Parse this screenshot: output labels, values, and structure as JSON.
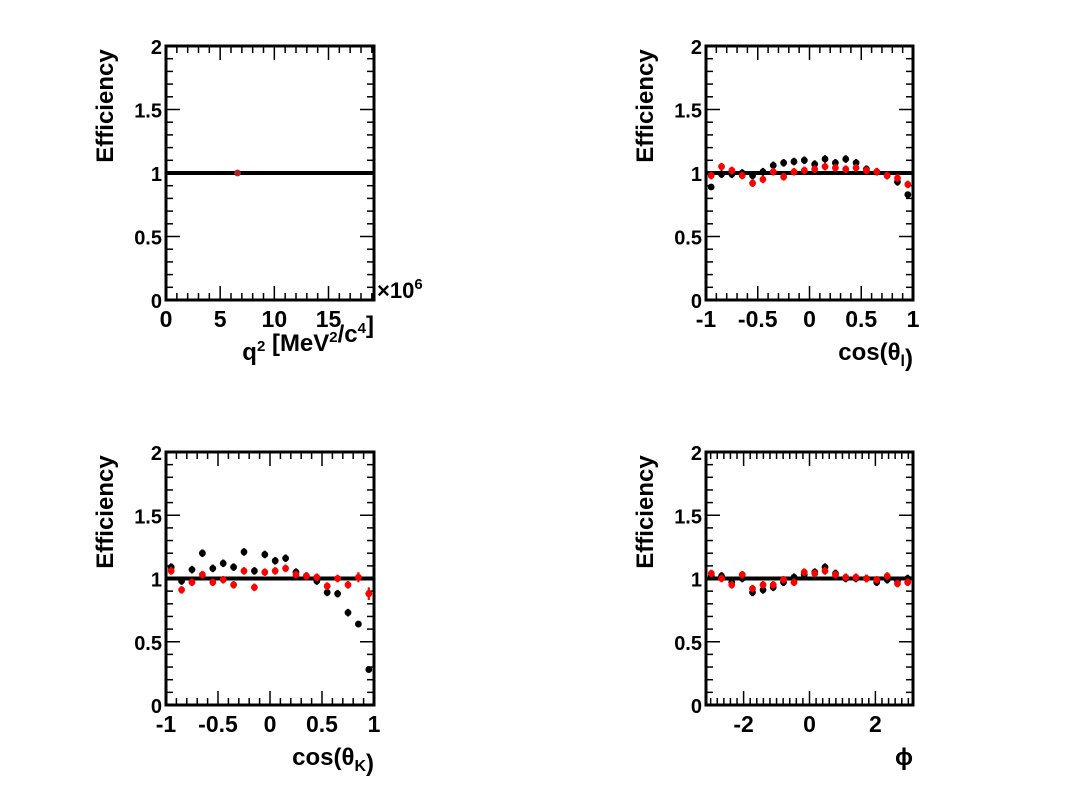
{
  "colors": {
    "black_series": "#000000",
    "red_series": "#ff0000",
    "reference_line": "#000000",
    "q2_point": "#b22222"
  },
  "chart_data": [
    {
      "id": "q2",
      "type": "scatter",
      "ylabel": "Efficiency",
      "xlabel_parts": [
        [
          "q",
          ""
        ],
        [
          "2",
          "sup"
        ],
        [
          " [MeV",
          ""
        ],
        [
          "2",
          "sup"
        ],
        [
          "/c",
          ""
        ],
        [
          "4",
          "sup"
        ],
        [
          "]",
          ""
        ]
      ],
      "xlim": [
        0,
        19.2
      ],
      "ylim": [
        0,
        2
      ],
      "xmajor": [
        0,
        5,
        10,
        15
      ],
      "xminor": 1,
      "xtick_labels": [
        "0",
        "5",
        "10",
        "15"
      ],
      "ymajor": [
        0,
        0.5,
        1,
        1.5,
        2
      ],
      "yminor": 0.1,
      "ytick_labels": [
        "0",
        "0.5",
        "1",
        "1.5",
        "2"
      ],
      "exponent_label": "×10",
      "exponent_power": "6",
      "reference_y": 1,
      "series": [
        {
          "name": "black",
          "color": "#b22222",
          "dx": 0,
          "x": [
            6.6
          ],
          "y": [
            1.0
          ],
          "ey": [
            0.01
          ]
        }
      ]
    },
    {
      "id": "costl",
      "type": "scatter",
      "ylabel": "Efficiency",
      "xlabel_parts": [
        [
          "cos(θ",
          ""
        ],
        [
          "l",
          "sub"
        ],
        [
          ")",
          ""
        ]
      ],
      "xlim": [
        -1,
        1
      ],
      "ylim": [
        0,
        2
      ],
      "xmajor": [
        -1,
        -0.5,
        0,
        0.5,
        1
      ],
      "xminor": 0.1,
      "xtick_labels": [
        "-1",
        "-0.5",
        "0",
        "0.5",
        "1"
      ],
      "ymajor": [
        0,
        0.5,
        1,
        1.5,
        2
      ],
      "yminor": 0.1,
      "ytick_labels": [
        "0",
        "0.5",
        "1",
        "1.5",
        "2"
      ],
      "reference_y": 1,
      "series": [
        {
          "name": "black",
          "color": "#000000",
          "dx": 0.1,
          "x": [
            -0.95,
            -0.85,
            -0.75,
            -0.65,
            -0.55,
            -0.45,
            -0.35,
            -0.25,
            -0.15,
            -0.05,
            0.05,
            0.15,
            0.25,
            0.35,
            0.45,
            0.55,
            0.65,
            0.75,
            0.85,
            0.95
          ],
          "y": [
            0.89,
            0.99,
            0.99,
            1.0,
            0.98,
            1.01,
            1.06,
            1.08,
            1.09,
            1.1,
            1.07,
            1.11,
            1.08,
            1.11,
            1.08,
            1.03,
            1.01,
            0.98,
            0.93,
            0.83
          ],
          "ey": [
            0.02,
            0.03,
            0.03,
            0.03,
            0.03,
            0.03,
            0.03,
            0.03,
            0.03,
            0.03,
            0.03,
            0.03,
            0.03,
            0.03,
            0.03,
            0.03,
            0.03,
            0.03,
            0.03,
            0.02
          ]
        },
        {
          "name": "red",
          "color": "#ff0000",
          "dx": 0.1,
          "x": [
            -0.95,
            -0.85,
            -0.75,
            -0.65,
            -0.55,
            -0.45,
            -0.35,
            -0.25,
            -0.15,
            -0.05,
            0.05,
            0.15,
            0.25,
            0.35,
            0.45,
            0.55,
            0.65,
            0.75,
            0.85,
            0.95
          ],
          "y": [
            0.98,
            1.05,
            1.02,
            0.98,
            0.92,
            0.95,
            1.01,
            0.97,
            1.01,
            1.02,
            1.03,
            1.05,
            1.04,
            1.03,
            1.04,
            1.02,
            1.01,
            0.98,
            0.96,
            0.91
          ],
          "ey": [
            0.03,
            0.03,
            0.03,
            0.03,
            0.03,
            0.03,
            0.03,
            0.03,
            0.03,
            0.03,
            0.03,
            0.03,
            0.03,
            0.03,
            0.03,
            0.03,
            0.03,
            0.03,
            0.03,
            0.03
          ]
        }
      ]
    },
    {
      "id": "costk",
      "type": "scatter",
      "ylabel": "Efficiency",
      "xlabel_parts": [
        [
          "cos(θ",
          ""
        ],
        [
          "K",
          "sub"
        ],
        [
          ")",
          ""
        ]
      ],
      "xlim": [
        -1,
        1
      ],
      "ylim": [
        0,
        2
      ],
      "xmajor": [
        -1,
        -0.5,
        0,
        0.5,
        1
      ],
      "xminor": 0.1,
      "xtick_labels": [
        "-1",
        "-0.5",
        "0",
        "0.5",
        "1"
      ],
      "ymajor": [
        0,
        0.5,
        1,
        1.5,
        2
      ],
      "yminor": 0.1,
      "ytick_labels": [
        "0",
        "0.5",
        "1",
        "1.5",
        "2"
      ],
      "reference_y": 1,
      "series": [
        {
          "name": "black",
          "color": "#000000",
          "dx": 0.1,
          "x": [
            -0.95,
            -0.85,
            -0.75,
            -0.65,
            -0.55,
            -0.45,
            -0.35,
            -0.25,
            -0.15,
            -0.05,
            0.05,
            0.15,
            0.25,
            0.35,
            0.45,
            0.55,
            0.65,
            0.75,
            0.85,
            0.95
          ],
          "y": [
            1.09,
            0.98,
            1.07,
            1.2,
            1.08,
            1.12,
            1.09,
            1.21,
            1.06,
            1.19,
            1.14,
            1.16,
            1.05,
            1.02,
            0.98,
            0.89,
            0.88,
            0.73,
            0.64,
            0.28
          ],
          "ey": [
            0.03,
            0.03,
            0.03,
            0.03,
            0.03,
            0.03,
            0.03,
            0.03,
            0.03,
            0.03,
            0.03,
            0.03,
            0.03,
            0.03,
            0.03,
            0.03,
            0.03,
            0.03,
            0.02,
            0.02
          ]
        },
        {
          "name": "red",
          "color": "#ff0000",
          "dx": 0.1,
          "x": [
            -0.95,
            -0.85,
            -0.75,
            -0.65,
            -0.55,
            -0.45,
            -0.35,
            -0.25,
            -0.15,
            -0.05,
            0.05,
            0.15,
            0.25,
            0.35,
            0.45,
            0.55,
            0.65,
            0.75,
            0.85,
            0.95
          ],
          "y": [
            1.06,
            0.91,
            0.97,
            1.03,
            0.97,
            0.99,
            0.95,
            1.06,
            0.93,
            1.05,
            1.06,
            1.08,
            1.03,
            1.02,
            1.01,
            0.94,
            1.0,
            0.95,
            1.01,
            0.88
          ],
          "ey": [
            0.03,
            0.03,
            0.03,
            0.03,
            0.03,
            0.03,
            0.03,
            0.03,
            0.03,
            0.03,
            0.03,
            0.03,
            0.03,
            0.03,
            0.03,
            0.03,
            0.03,
            0.03,
            0.04,
            0.05
          ]
        }
      ]
    },
    {
      "id": "phi",
      "type": "scatter",
      "ylabel": "Efficiency",
      "xlabel_parts": [
        [
          "ϕ",
          ""
        ]
      ],
      "xlim": [
        -3.14159,
        3.14159
      ],
      "ylim": [
        0,
        2
      ],
      "xmajor": [
        -2,
        0,
        2
      ],
      "xminor": 0.2,
      "xtick_labels": [
        "-2",
        "0",
        "2"
      ],
      "ymajor": [
        0,
        0.5,
        1,
        1.5,
        2
      ],
      "yminor": 0.1,
      "ytick_labels": [
        "0",
        "0.5",
        "1",
        "1.5",
        "2"
      ],
      "reference_y": 1,
      "series": [
        {
          "name": "black",
          "color": "#000000",
          "dx": 0.314,
          "x": [
            -2.98,
            -2.67,
            -2.36,
            -2.04,
            -1.73,
            -1.41,
            -1.1,
            -0.79,
            -0.47,
            -0.16,
            0.16,
            0.47,
            0.79,
            1.1,
            1.41,
            1.73,
            2.04,
            2.36,
            2.67,
            2.98
          ],
          "y": [
            1.02,
            1.02,
            0.97,
            1.0,
            0.89,
            0.91,
            0.93,
            0.97,
            1.01,
            1.03,
            1.05,
            1.09,
            1.04,
            1.0,
            1.0,
            1.0,
            0.97,
            0.99,
            0.98,
            1.0
          ],
          "ey": [
            0.03,
            0.03,
            0.03,
            0.03,
            0.03,
            0.03,
            0.03,
            0.03,
            0.03,
            0.03,
            0.03,
            0.03,
            0.03,
            0.03,
            0.03,
            0.03,
            0.03,
            0.03,
            0.03,
            0.03
          ]
        },
        {
          "name": "red",
          "color": "#ff0000",
          "dx": 0.314,
          "x": [
            -2.98,
            -2.67,
            -2.36,
            -2.04,
            -1.73,
            -1.41,
            -1.1,
            -0.79,
            -0.47,
            -0.16,
            0.16,
            0.47,
            0.79,
            1.1,
            1.41,
            1.73,
            2.04,
            2.36,
            2.67,
            2.98
          ],
          "y": [
            1.04,
            1.0,
            0.95,
            1.03,
            0.92,
            0.95,
            0.95,
            0.99,
            0.97,
            1.05,
            1.04,
            1.06,
            1.03,
            1.01,
            1.01,
            1.0,
            0.99,
            1.02,
            0.96,
            0.97
          ],
          "ey": [
            0.03,
            0.03,
            0.03,
            0.03,
            0.03,
            0.03,
            0.03,
            0.03,
            0.03,
            0.03,
            0.03,
            0.03,
            0.03,
            0.03,
            0.03,
            0.03,
            0.03,
            0.03,
            0.03,
            0.03
          ]
        }
      ]
    }
  ]
}
